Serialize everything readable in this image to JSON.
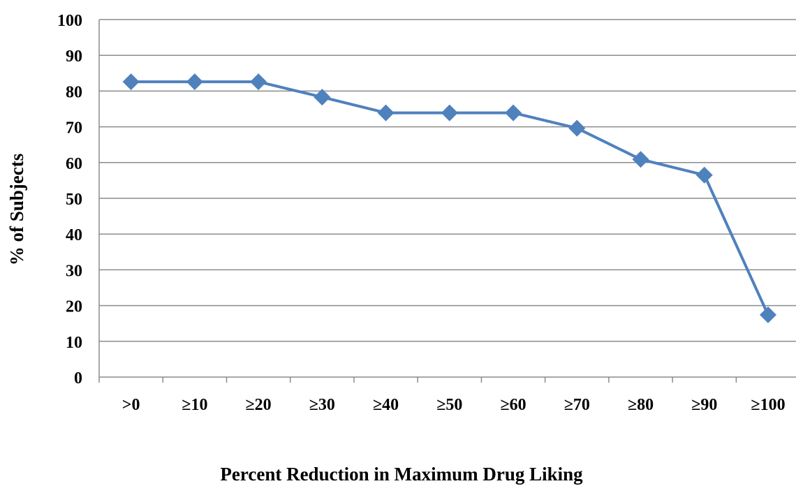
{
  "chart_data": {
    "type": "line",
    "title": "",
    "xlabel": "Percent Reduction in Maximum Drug Liking",
    "ylabel": "% of Subjects",
    "categories": [
      ">0",
      "≥10",
      "≥20",
      "≥30",
      "≥40",
      "≥50",
      "≥60",
      "≥70",
      "≥80",
      "≥90",
      "≥100"
    ],
    "series": [
      {
        "values": [
          82.6,
          82.6,
          82.6,
          78.3,
          73.9,
          73.9,
          73.9,
          69.6,
          60.9,
          56.5,
          17.4
        ]
      }
    ],
    "ylim": [
      0,
      100
    ],
    "yticks": [
      0,
      10,
      20,
      30,
      40,
      50,
      60,
      70,
      80,
      90,
      100
    ],
    "grid": true,
    "legend": "none",
    "colors": {
      "series": "#4F81BD",
      "grid": "#8C8C8C",
      "axis": "#8C8C8C"
    }
  }
}
